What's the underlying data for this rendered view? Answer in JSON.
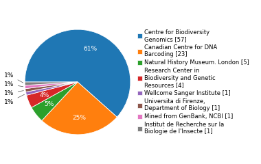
{
  "chart_data": {
    "type": "pie",
    "categories": [
      "Centre for Biodiversity\nGenomics [57]",
      "Canadian Centre for DNA\nBarcoding [23]",
      "Natural History Museum. London [5]",
      "Research Center in\nBiodiversity and Genetic\nResources [4]",
      "Wellcome Sanger Institute [1]",
      "Universita di Firenze,\nDepartment of Biology [1]",
      "Mined from GenBank, NCBI [1]",
      "Institut de Recherche sur la\nBiologie de l'Insecte [1]"
    ],
    "values": [
      61,
      25,
      5,
      4,
      1,
      1,
      1,
      1
    ],
    "value_labels": [
      "61%",
      "25%",
      "5%",
      "4%",
      "1%",
      "1%",
      "1%",
      "1%"
    ],
    "data_labels": true,
    "legend": "center left"
  }
}
